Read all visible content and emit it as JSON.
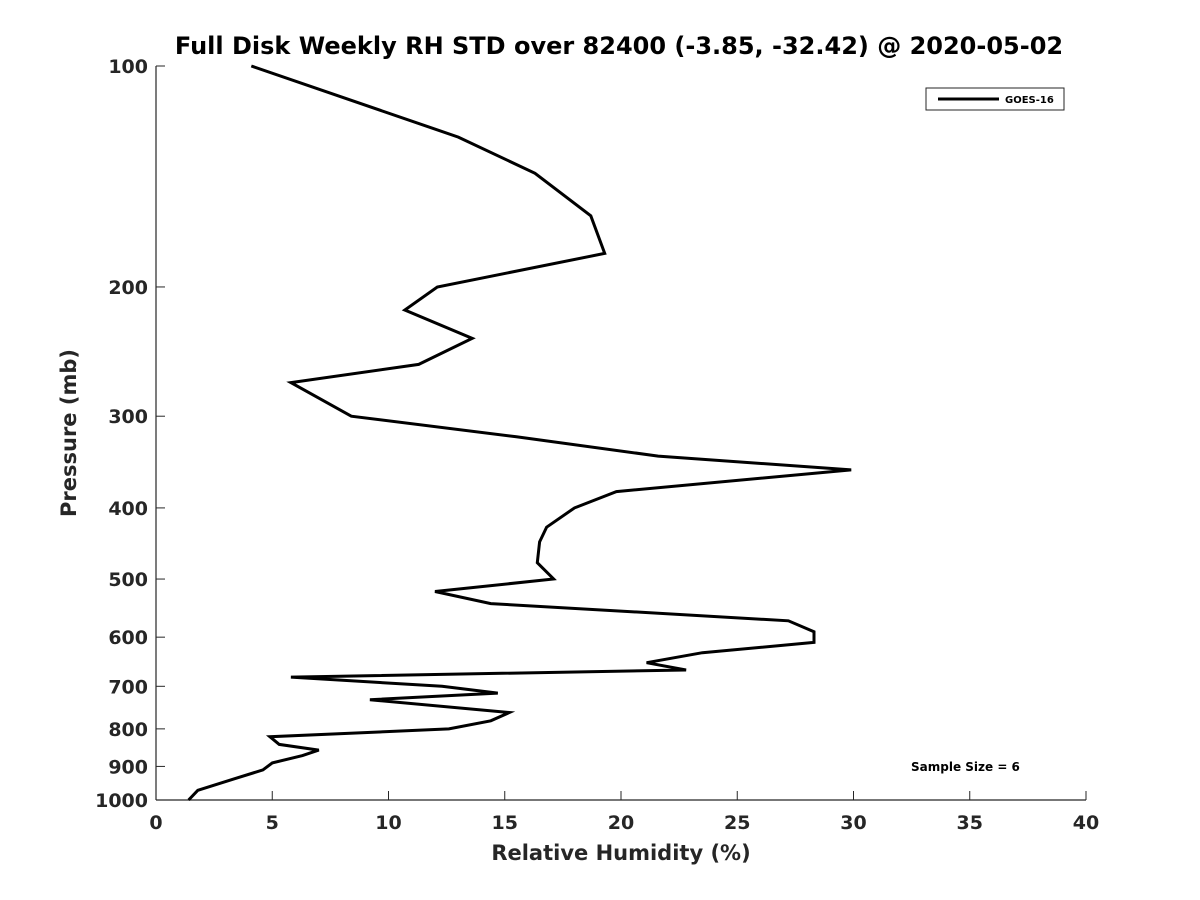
{
  "chart_data": {
    "type": "line",
    "title": "Full Disk Weekly RH STD over 82400 (-3.85, -32.42) @ 2020-05-02",
    "xlabel": "Relative Humidity (%)",
    "ylabel": "Pressure (mb)",
    "xlim": [
      0,
      40
    ],
    "ylim": [
      100,
      1000
    ],
    "yscale": "log",
    "y_direction": "reverse",
    "x_ticks": [
      0,
      5,
      10,
      15,
      20,
      25,
      30,
      35,
      40
    ],
    "y_ticks": [
      100,
      200,
      300,
      400,
      500,
      600,
      700,
      800,
      900,
      1000
    ],
    "grid": false,
    "legend_position": "top-right",
    "annotation": "Sample Size = 6",
    "series": [
      {
        "name": "GOES-16",
        "color": "#000000",
        "x": [
          4.1,
          13.0,
          16.3,
          18.7,
          19.3,
          12.1,
          10.7,
          13.6,
          11.3,
          5.8,
          8.4,
          15.5,
          21.6,
          29.9,
          19.8,
          18.0,
          16.8,
          16.5,
          16.4,
          17.1,
          12.0,
          14.4,
          27.2,
          28.3,
          28.3,
          23.5,
          21.1,
          22.8,
          5.8,
          12.3,
          14.7,
          9.2,
          15.2,
          14.4,
          12.6,
          4.9,
          5.3,
          7.0,
          6.3,
          5.0,
          4.6,
          3.4,
          1.8,
          1.4
        ],
        "y": [
          100,
          125,
          140,
          160,
          180,
          200,
          215,
          235,
          255,
          270,
          300,
          320,
          340,
          355,
          380,
          400,
          425,
          445,
          475,
          500,
          520,
          540,
          570,
          590,
          610,
          630,
          650,
          665,
          680,
          700,
          715,
          730,
          760,
          780,
          800,
          820,
          840,
          855,
          870,
          890,
          910,
          935,
          970,
          1000
        ]
      }
    ]
  }
}
